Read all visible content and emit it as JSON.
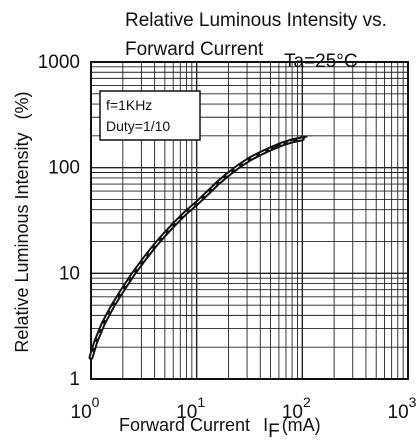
{
  "chart_data": {
    "type": "line",
    "title_lines": [
      "Relative Luminous Intensity vs.",
      "Forward Current"
    ],
    "condition": "Ta=25",
    "condition_unit": "°C",
    "xlabel": "Forward Current",
    "xlabel_symbol": "I",
    "xlabel_subscript": "F",
    "xlabel_unit": "(mA)",
    "ylabel": "Relative Luminous Intensity",
    "ylabel_unit": "(%)",
    "x_scale": "log",
    "y_scale": "log",
    "xlim": [
      1,
      1000
    ],
    "ylim": [
      1,
      1000
    ],
    "x_ticks": [
      {
        "value": 1,
        "base": "10",
        "exp": "0"
      },
      {
        "value": 10,
        "base": "10",
        "exp": "1"
      },
      {
        "value": 100,
        "base": "10",
        "exp": "2"
      },
      {
        "value": 1000,
        "base": "10",
        "exp": "3"
      }
    ],
    "y_ticks": [
      {
        "value": 1,
        "label": "1"
      },
      {
        "value": 10,
        "label": "10"
      },
      {
        "value": 100,
        "label": "100"
      },
      {
        "value": 1000,
        "label": "1000"
      }
    ],
    "grid": true,
    "legend_lines": [
      "f=1KHz",
      "Duty=1/10"
    ],
    "legend_position": "top-left",
    "series": [
      {
        "style": "solid",
        "x": [
          1.0,
          1.1,
          1.3,
          1.6,
          2.0,
          2.5,
          3.2,
          4.0,
          5.0,
          6.3,
          8.0,
          10,
          13,
          16,
          20,
          25,
          32,
          40,
          50,
          63,
          80,
          100
        ],
        "y": [
          1.6,
          2.2,
          3.3,
          4.9,
          7.0,
          9.8,
          13.7,
          18.2,
          23.5,
          30,
          38,
          46,
          59,
          72,
          87,
          103,
          121,
          136,
          151,
          166,
          179,
          188
        ]
      },
      {
        "style": "dashed",
        "x": [
          50,
          63,
          80,
          100,
          120
        ],
        "y": [
          152,
          168,
          183,
          194,
          200
        ]
      }
    ]
  }
}
